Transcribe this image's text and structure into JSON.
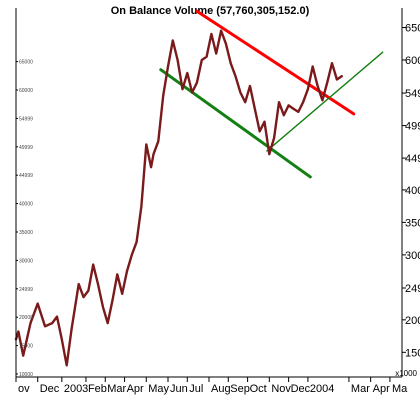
{
  "chart_data": {
    "type": "line",
    "title": "On Balance Volume (57,760,305,152.0)",
    "unit_label": "x1000",
    "colors": {
      "series": "#7a1a1a",
      "resistance": "#ff0000",
      "support": "#128012",
      "axis": "#000000"
    },
    "grid": false,
    "legend": "none",
    "x_ticks": [
      "ov",
      "Dec",
      "2003",
      "Feb",
      "Mar",
      "Apr",
      "May",
      "Jun",
      "Jul",
      "Aug",
      "Sep",
      "Oct",
      "Nov",
      "Dec",
      "2004",
      "Mar",
      "Apr",
      "Ma"
    ],
    "x_tick_index": [
      0,
      9,
      19,
      29,
      37,
      45,
      54,
      63,
      71,
      80,
      88,
      96,
      105,
      113,
      121,
      138,
      147,
      155
    ],
    "y_ticks_right": [
      150,
      200,
      249,
      300,
      350,
      400,
      449,
      499,
      549,
      600,
      650
    ],
    "y_ticks_left": [
      "10000",
      "15000",
      "20000",
      "24999",
      "30000",
      "35000",
      "40000",
      "44999",
      "49999",
      "54999",
      "60000",
      "65000"
    ],
    "ylim": [
      112,
      680
    ],
    "xlim": [
      0,
      160
    ],
    "series": [
      {
        "x": [
          0,
          1,
          3,
          6,
          9,
          12,
          15,
          17,
          19,
          21,
          23,
          26,
          28,
          30,
          32,
          34,
          36,
          38,
          40,
          42,
          44,
          46,
          48,
          50,
          52,
          54,
          56,
          57,
          59,
          61,
          63,
          65,
          67,
          69,
          71,
          73,
          75,
          77,
          79,
          81,
          83,
          85,
          87,
          89,
          91,
          93,
          95,
          97,
          99,
          101,
          103,
          105,
          107,
          109,
          111,
          113,
          115,
          117,
          119,
          121,
          123,
          125,
          127,
          129,
          131,
          133,
          135
        ],
        "values": [
          170,
          182,
          145,
          195,
          225,
          190,
          195,
          205,
          170,
          130,
          185,
          255,
          235,
          245,
          285,
          255,
          220,
          195,
          230,
          270,
          240,
          275,
          300,
          320,
          375,
          470,
          435,
          455,
          475,
          545,
          590,
          630,
          600,
          555,
          580,
          550,
          565,
          600,
          605,
          640,
          610,
          645,
          625,
          595,
          575,
          550,
          535,
          560,
          525,
          490,
          505,
          455,
          480,
          535,
          515,
          530,
          525,
          520,
          535,
          555,
          590,
          560,
          538,
          565,
          595,
          570,
          575
        ]
      }
    ],
    "trendlines": [
      {
        "name": "resistance",
        "x": [
          75,
          140
        ],
        "values": [
          675,
          517
        ]
      },
      {
        "name": "support-lower",
        "x": [
          60,
          122
        ],
        "values": [
          585,
          420
        ]
      },
      {
        "name": "support-upper",
        "x": [
          104,
          152
        ],
        "values": [
          460,
          612
        ]
      }
    ]
  }
}
